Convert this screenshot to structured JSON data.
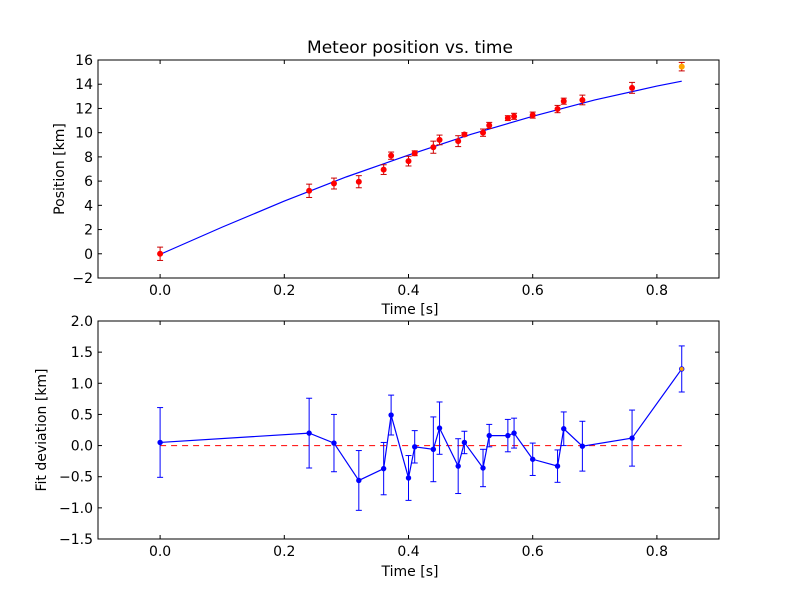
{
  "chart_data": [
    {
      "type": "scatter",
      "title": "Meteor position vs. time",
      "xlabel": "Time [s]",
      "ylabel": "Position [km]",
      "xlim": [
        -0.1,
        0.9
      ],
      "ylim": [
        -2,
        16
      ],
      "xticks": [
        "0.0",
        "0.2",
        "0.4",
        "0.6",
        "0.8"
      ],
      "yticks": [
        "−2",
        "0",
        "2",
        "4",
        "6",
        "8",
        "10",
        "12",
        "14",
        "16"
      ],
      "grid": false,
      "colors": {
        "measurements": "#ff0000",
        "outlier": "#ffa500",
        "fit": "#0000ff",
        "errorbars": "#cc0000"
      },
      "series": [
        {
          "kind": "errorbar-points",
          "points": [
            {
              "x": 0.0,
              "y": 0.0,
              "err": 0.55
            },
            {
              "x": 0.24,
              "y": 5.2,
              "err": 0.55
            },
            {
              "x": 0.28,
              "y": 5.8,
              "err": 0.45
            },
            {
              "x": 0.32,
              "y": 5.95,
              "err": 0.5
            },
            {
              "x": 0.36,
              "y": 6.95,
              "err": 0.4
            },
            {
              "x": 0.372,
              "y": 8.1,
              "err": 0.3
            },
            {
              "x": 0.4,
              "y": 7.65,
              "err": 0.4
            },
            {
              "x": 0.41,
              "y": 8.3,
              "err": 0.2
            },
            {
              "x": 0.44,
              "y": 8.8,
              "err": 0.5
            },
            {
              "x": 0.45,
              "y": 9.4,
              "err": 0.4
            },
            {
              "x": 0.48,
              "y": 9.3,
              "err": 0.45
            },
            {
              "x": 0.49,
              "y": 9.85,
              "err": 0.15
            },
            {
              "x": 0.52,
              "y": 10.0,
              "err": 0.3
            },
            {
              "x": 0.53,
              "y": 10.6,
              "err": 0.25
            },
            {
              "x": 0.56,
              "y": 11.2,
              "err": 0.2
            },
            {
              "x": 0.57,
              "y": 11.35,
              "err": 0.25
            },
            {
              "x": 0.6,
              "y": 11.45,
              "err": 0.25
            },
            {
              "x": 0.64,
              "y": 11.95,
              "err": 0.3
            },
            {
              "x": 0.65,
              "y": 12.6,
              "err": 0.25
            },
            {
              "x": 0.68,
              "y": 12.7,
              "err": 0.4
            },
            {
              "x": 0.76,
              "y": 13.7,
              "err": 0.45
            }
          ]
        },
        {
          "kind": "outlier-point",
          "points": [
            {
              "x": 0.84,
              "y": 15.45,
              "err": 0.35
            }
          ]
        },
        {
          "kind": "fit-line",
          "x": [
            0.0,
            0.1,
            0.2,
            0.3,
            0.4,
            0.5,
            0.6,
            0.7,
            0.8,
            0.84
          ],
          "y": [
            -0.05,
            2.2,
            4.35,
            6.35,
            8.15,
            9.85,
            11.35,
            12.7,
            13.85,
            14.25
          ]
        }
      ]
    },
    {
      "type": "line",
      "title": "",
      "xlabel": "Time [s]",
      "ylabel": "Fit deviation [km]",
      "xlim": [
        -0.1,
        0.9
      ],
      "ylim": [
        -1.5,
        2.0
      ],
      "xticks": [
        "0.0",
        "0.2",
        "0.4",
        "0.6",
        "0.8"
      ],
      "yticks": [
        "−1.5",
        "−1.0",
        "−0.5",
        "0.0",
        "0.5",
        "1.0",
        "1.5",
        "2.0"
      ],
      "grid": false,
      "colors": {
        "deviation": "#0000ff",
        "zero_line": "#ff0000",
        "outlier": "#ffa500"
      },
      "reference_line_y": 0.0,
      "series": [
        {
          "kind": "errorbar-line",
          "points": [
            {
              "x": 0.0,
              "y": 0.05,
              "err": 0.56
            },
            {
              "x": 0.24,
              "y": 0.2,
              "err": 0.56
            },
            {
              "x": 0.28,
              "y": 0.04,
              "err": 0.46
            },
            {
              "x": 0.32,
              "y": -0.56,
              "err": 0.48
            },
            {
              "x": 0.36,
              "y": -0.37,
              "err": 0.42
            },
            {
              "x": 0.372,
              "y": 0.49,
              "err": 0.32
            },
            {
              "x": 0.4,
              "y": -0.52,
              "err": 0.36
            },
            {
              "x": 0.41,
              "y": -0.02,
              "err": 0.26
            },
            {
              "x": 0.44,
              "y": -0.06,
              "err": 0.52
            },
            {
              "x": 0.45,
              "y": 0.28,
              "err": 0.42
            },
            {
              "x": 0.48,
              "y": -0.33,
              "err": 0.44
            },
            {
              "x": 0.49,
              "y": 0.05,
              "err": 0.18
            },
            {
              "x": 0.52,
              "y": -0.36,
              "err": 0.3
            },
            {
              "x": 0.53,
              "y": 0.16,
              "err": 0.18
            },
            {
              "x": 0.56,
              "y": 0.16,
              "err": 0.26
            },
            {
              "x": 0.57,
              "y": 0.2,
              "err": 0.24
            },
            {
              "x": 0.6,
              "y": -0.22,
              "err": 0.26
            },
            {
              "x": 0.64,
              "y": -0.33,
              "err": 0.26
            },
            {
              "x": 0.65,
              "y": 0.27,
              "err": 0.27
            },
            {
              "x": 0.68,
              "y": -0.01,
              "err": 0.4
            },
            {
              "x": 0.76,
              "y": 0.12,
              "err": 0.45
            },
            {
              "x": 0.84,
              "y": 1.23,
              "err": 0.37
            }
          ]
        }
      ]
    }
  ]
}
